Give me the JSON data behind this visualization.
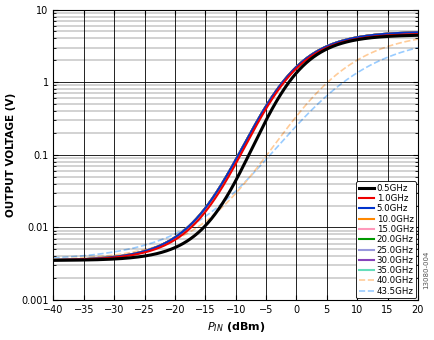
{
  "title": "",
  "xlabel": "$P_{IN}$ (dBm)",
  "ylabel": "OUTPUT VOLTAGE (V)",
  "xlim": [
    -40,
    20
  ],
  "ylim": [
    0.001,
    10
  ],
  "annotation": "13080-004",
  "series": [
    {
      "label": "0.5GHz",
      "color": "#000000",
      "lw": 2.2,
      "ls": "-",
      "knee": -30.0,
      "noise_floor": 0.0035,
      "sat": 4.5,
      "sat_x": 15.5,
      "sharpness": 4.0
    },
    {
      "label": "1.0GHz",
      "color": "#ee0000",
      "lw": 1.5,
      "ls": "-",
      "knee": -33.0,
      "noise_floor": 0.0035,
      "sat": 4.7,
      "sat_x": 16.5,
      "sharpness": 4.0
    },
    {
      "label": "5.0GHz",
      "color": "#0033cc",
      "lw": 1.5,
      "ls": "-",
      "knee": -34.0,
      "noise_floor": 0.0035,
      "sat": 5.0,
      "sat_x": 17.0,
      "sharpness": 4.0
    },
    {
      "label": "10.0GHz",
      "color": "#ff8800",
      "lw": 1.5,
      "ls": "-",
      "knee": -34.0,
      "noise_floor": 0.0035,
      "sat": 5.0,
      "sat_x": 17.0,
      "sharpness": 4.0
    },
    {
      "label": "15.0GHz",
      "color": "#ff99bb",
      "lw": 1.5,
      "ls": "-",
      "knee": -34.0,
      "noise_floor": 0.0035,
      "sat": 5.0,
      "sat_x": 17.0,
      "sharpness": 4.0
    },
    {
      "label": "20.0GHz",
      "color": "#009900",
      "lw": 1.5,
      "ls": "-",
      "knee": -34.0,
      "noise_floor": 0.0035,
      "sat": 5.0,
      "sat_x": 17.0,
      "sharpness": 4.0
    },
    {
      "label": "25.0GHz",
      "color": "#9999dd",
      "lw": 1.5,
      "ls": "-",
      "knee": -34.0,
      "noise_floor": 0.0035,
      "sat": 5.0,
      "sat_x": 17.0,
      "sharpness": 4.0
    },
    {
      "label": "30.0GHz",
      "color": "#8844bb",
      "lw": 1.5,
      "ls": "-",
      "knee": -34.0,
      "noise_floor": 0.0035,
      "sat": 5.0,
      "sat_x": 17.0,
      "sharpness": 4.0
    },
    {
      "label": "35.0GHz",
      "color": "#66ddbb",
      "lw": 1.5,
      "ls": "-",
      "knee": -34.0,
      "noise_floor": 0.0035,
      "sat": 5.0,
      "sat_x": 17.0,
      "sharpness": 4.0
    },
    {
      "label": "40.0GHz",
      "color": "#ffcc99",
      "lw": 1.2,
      "ls": "--",
      "knee": -34.0,
      "noise_floor": 0.0035,
      "sat": 5.0,
      "sat_x": 17.0,
      "sharpness": 2.5
    },
    {
      "label": "43.5GHz",
      "color": "#99ccff",
      "lw": 1.2,
      "ls": "--",
      "knee": -34.0,
      "noise_floor": 0.0035,
      "sat": 4.5,
      "sat_x": 17.0,
      "sharpness": 2.0
    }
  ]
}
